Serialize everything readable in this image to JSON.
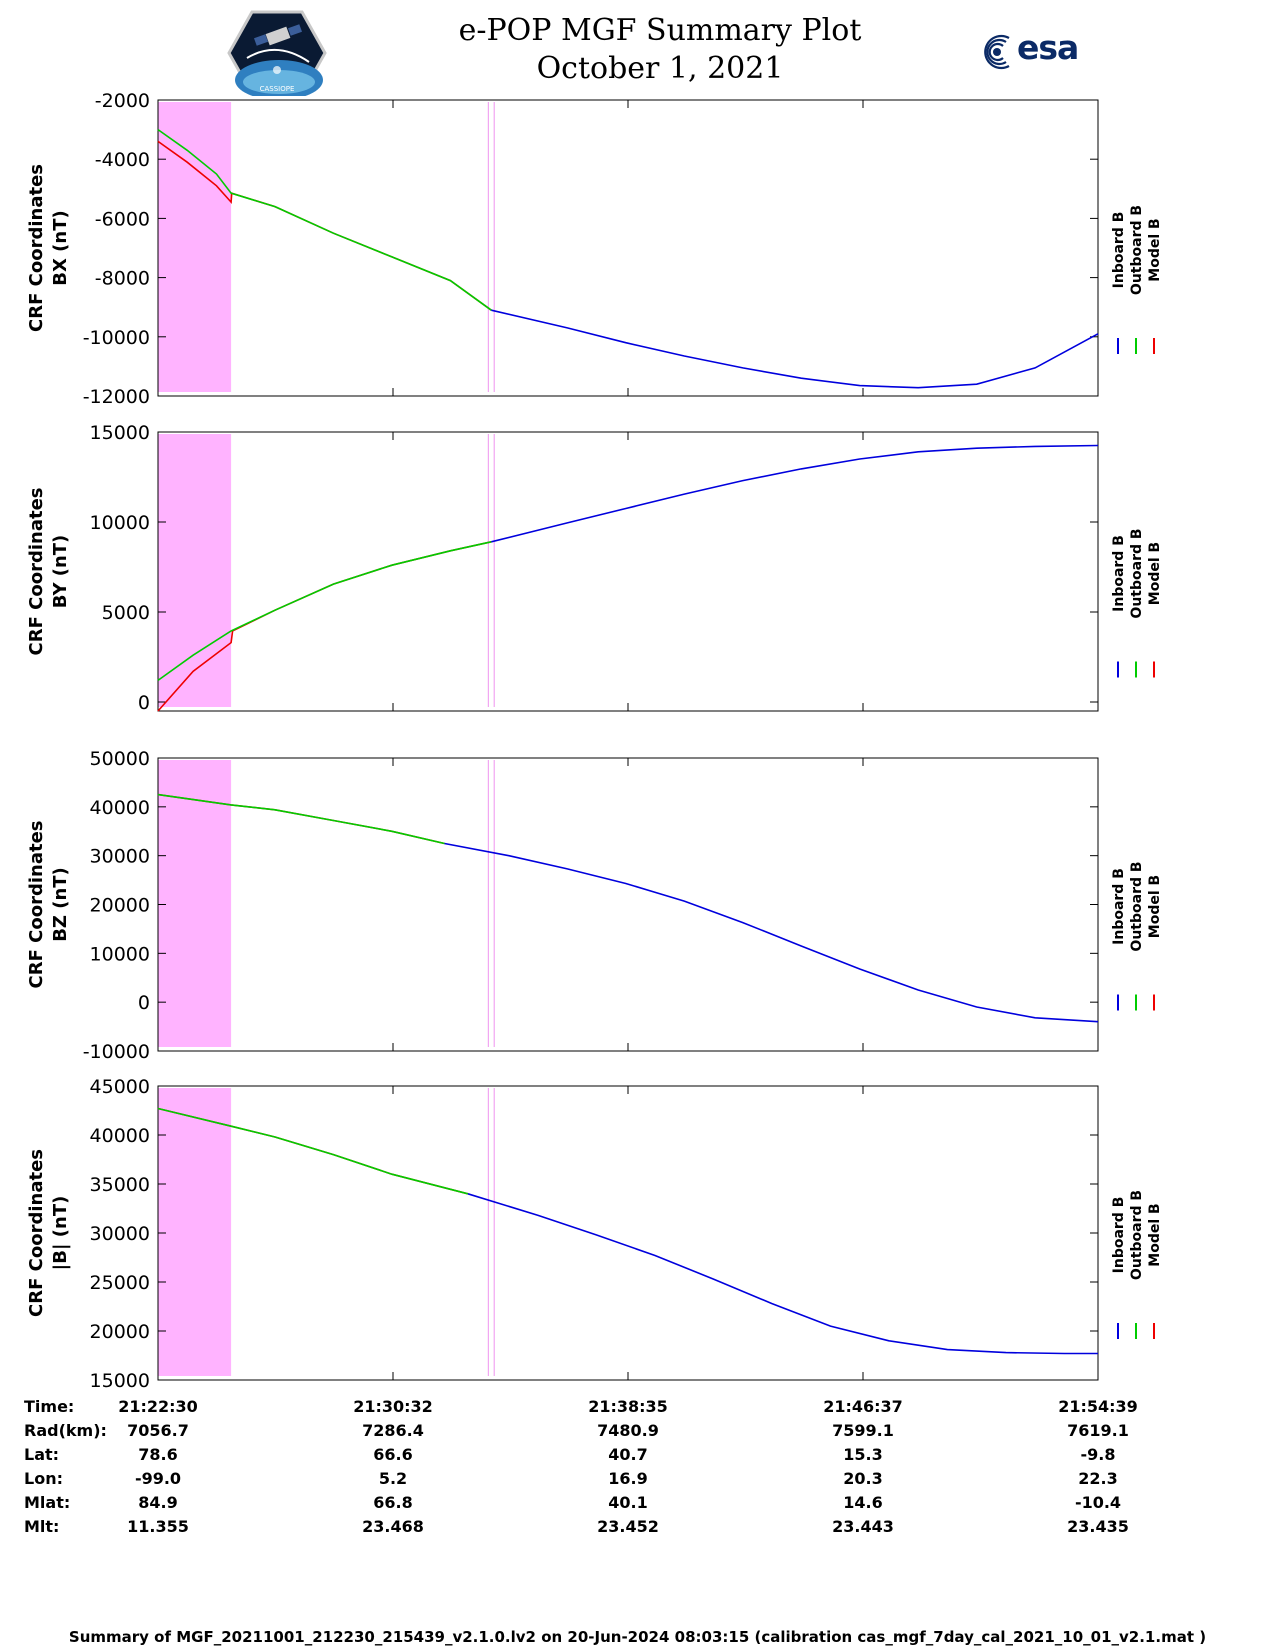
{
  "header": {
    "title_line1": "e-POP MGF Summary Plot",
    "title_line2": "October 1, 2021",
    "left_logo": "cassiope-mission-patch",
    "left_logo_caption": "CASSIOPE",
    "right_logo_text": "esa"
  },
  "legend": {
    "entries": [
      {
        "label": "Inboard B",
        "color": "#0000dd"
      },
      {
        "label": "Outboard B",
        "color": "#00cc00"
      },
      {
        "label": "Model B",
        "color": "#ee0000"
      }
    ]
  },
  "chart_data": [
    {
      "type": "line",
      "ylabel_line1": "CRF Coordinates",
      "ylabel_line2": "BX (nT)",
      "ylim": [
        -12000,
        -2000
      ],
      "yticks": [
        -2000,
        -4000,
        -6000,
        -8000,
        -10000,
        -12000
      ],
      "xlim": [
        0,
        32.15
      ],
      "data_gap_intervals": [
        [
          0,
          2.5
        ]
      ],
      "markers": [
        11.3,
        11.5
      ],
      "series": [
        {
          "name": "Model B",
          "x": [
            0,
            1,
            2,
            2.5,
            2.52,
            4,
            6,
            8,
            10,
            11.4
          ],
          "values": [
            -3400,
            -4100,
            -4900,
            -5450,
            -5150,
            -5600,
            -6500,
            -7300,
            -8100,
            -9100
          ]
        },
        {
          "name": "Outboard B",
          "x": [
            0,
            1,
            2,
            2.5,
            4,
            6,
            8,
            10,
            11.4
          ],
          "values": [
            -3000,
            -3700,
            -4500,
            -5150,
            -5600,
            -6500,
            -7300,
            -8100,
            -9100
          ]
        },
        {
          "name": "Inboard B",
          "x": [
            11.4,
            14,
            16,
            18,
            20,
            22,
            24,
            26,
            28,
            30,
            32.15
          ],
          "values": [
            -9100,
            -9700,
            -10200,
            -10650,
            -11050,
            -11400,
            -11650,
            -11720,
            -11600,
            -11050,
            -9900
          ]
        }
      ]
    },
    {
      "type": "line",
      "ylabel_line1": "CRF Coordinates",
      "ylabel_line2": "BY (nT)",
      "ylim": [
        -500,
        15000
      ],
      "yticks": [
        15000,
        10000,
        5000,
        0
      ],
      "xlim": [
        0,
        32.15
      ],
      "data_gap_intervals": [
        [
          0,
          2.5
        ]
      ],
      "markers": [
        11.3,
        11.5
      ],
      "series": [
        {
          "name": "Model B",
          "x": [
            0,
            1.2,
            2.5,
            2.55,
            4,
            6,
            8,
            10,
            11.4
          ],
          "values": [
            -500,
            1700,
            3300,
            3950,
            5100,
            6550,
            7600,
            8400,
            8900
          ]
        },
        {
          "name": "Outboard B",
          "x": [
            0,
            1.2,
            2.5,
            4,
            6,
            8,
            10,
            11.4
          ],
          "values": [
            1200,
            2600,
            3950,
            5100,
            6550,
            7600,
            8400,
            8900
          ]
        },
        {
          "name": "Inboard B",
          "x": [
            11.4,
            14,
            16,
            18,
            20,
            22,
            24,
            26,
            28,
            30,
            32.15
          ],
          "values": [
            8900,
            9950,
            10750,
            11550,
            12300,
            12950,
            13500,
            13900,
            14100,
            14200,
            14250
          ]
        }
      ]
    },
    {
      "type": "line",
      "ylabel_line1": "CRF Coordinates",
      "ylabel_line2": "BZ (nT)",
      "ylim": [
        -10000,
        50000
      ],
      "yticks": [
        50000,
        40000,
        30000,
        20000,
        10000,
        0,
        -10000
      ],
      "xlim": [
        0,
        32.15
      ],
      "data_gap_intervals": [
        [
          0,
          2.5
        ]
      ],
      "markers": [
        11.3,
        11.5
      ],
      "series": [
        {
          "name": "Model B",
          "x": [
            0,
            2.5,
            4,
            6,
            8,
            9.8
          ],
          "values": [
            42500,
            40400,
            39400,
            37200,
            35000,
            32500
          ]
        },
        {
          "name": "Outboard B",
          "x": [
            0,
            2.5,
            4,
            6,
            8,
            9.8
          ],
          "values": [
            42500,
            40400,
            39400,
            37200,
            35000,
            32500
          ]
        },
        {
          "name": "Inboard B",
          "x": [
            9.8,
            12,
            14,
            16,
            18,
            20,
            22,
            24,
            26,
            28,
            30,
            32.15
          ],
          "values": [
            32500,
            30000,
            27300,
            24300,
            20700,
            16300,
            11500,
            6800,
            2500,
            -1000,
            -3200,
            -4000
          ]
        }
      ]
    },
    {
      "type": "line",
      "ylabel_line1": "CRF Coordinates",
      "ylabel_line2": "|B| (nT)",
      "ylim": [
        15000,
        45000
      ],
      "yticks": [
        45000,
        40000,
        35000,
        30000,
        25000,
        20000,
        15000
      ],
      "xlim": [
        0,
        32.15
      ],
      "data_gap_intervals": [
        [
          0,
          2.5
        ]
      ],
      "markers": [
        11.3,
        11.5
      ],
      "series": [
        {
          "name": "Model B",
          "x": [
            0,
            2.5,
            4,
            6,
            8,
            10.6
          ],
          "values": [
            42700,
            40900,
            39800,
            38000,
            36000,
            34000
          ]
        },
        {
          "name": "Outboard B",
          "x": [
            0,
            2.5,
            4,
            6,
            8,
            10.6
          ],
          "values": [
            42700,
            40900,
            39800,
            38000,
            36000,
            34000
          ]
        },
        {
          "name": "Inboard B",
          "x": [
            10.6,
            13,
            15,
            17,
            19,
            21,
            23,
            25,
            27,
            29,
            31,
            32.15
          ],
          "values": [
            34000,
            31800,
            29800,
            27700,
            25300,
            22800,
            20500,
            19000,
            18100,
            17800,
            17700,
            17700
          ]
        }
      ]
    }
  ],
  "ephemeris": {
    "row_labels": [
      "Time:",
      "Rad(km):",
      "Lat:",
      "Lon:",
      "Mlat:",
      "Mlt:"
    ],
    "columns": [
      [
        "21:22:30",
        "7056.7",
        "78.6",
        "-99.0",
        "84.9",
        "11.355"
      ],
      [
        "21:30:32",
        "7286.4",
        "66.6",
        "5.2",
        "66.8",
        "23.468"
      ],
      [
        "21:38:35",
        "7480.9",
        "40.7",
        "16.9",
        "40.1",
        "23.452"
      ],
      [
        "21:46:37",
        "7599.1",
        "15.3",
        "20.3",
        "14.6",
        "23.443"
      ],
      [
        "21:54:39",
        "7619.1",
        "-9.8",
        "22.3",
        "-10.4",
        "23.435"
      ]
    ]
  },
  "footer": {
    "text": "Summary of MGF_20211001_212230_215439_v2.1.0.lv2 on 20-Jun-2024 08:03:15 (calibration cas_mgf_7day_cal_2021_10_01_v2.1.mat )"
  }
}
